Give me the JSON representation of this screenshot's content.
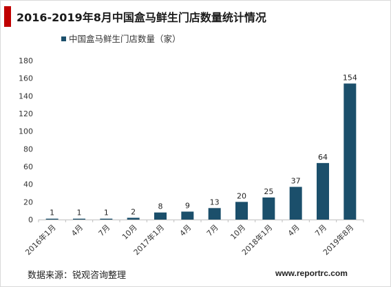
{
  "chart_data": {
    "type": "bar",
    "title": "2016-2019年8月中国盒马鲜生门店数量统计情况",
    "categories": [
      "2016年1月",
      "4月",
      "7月",
      "10月",
      "2017年1月",
      "4月",
      "7月",
      "10月",
      "2018年1月",
      "4月",
      "7月",
      "2019年8月"
    ],
    "series": [
      {
        "name": "中国盒马鲜生门店数量（家）",
        "values": [
          1,
          1,
          1,
          2,
          8,
          9,
          13,
          20,
          25,
          37,
          64,
          154
        ]
      }
    ],
    "ylim": [
      0,
      180
    ],
    "yticks": [
      0,
      20,
      40,
      60,
      80,
      100,
      120,
      140,
      160,
      180
    ],
    "legend_position": "top-left",
    "bar_color": "#1b4f6b",
    "accent_color": "#c00000"
  },
  "footer": {
    "source": "数据来源：锐观咨询整理",
    "url": "www.reportrc.com"
  }
}
